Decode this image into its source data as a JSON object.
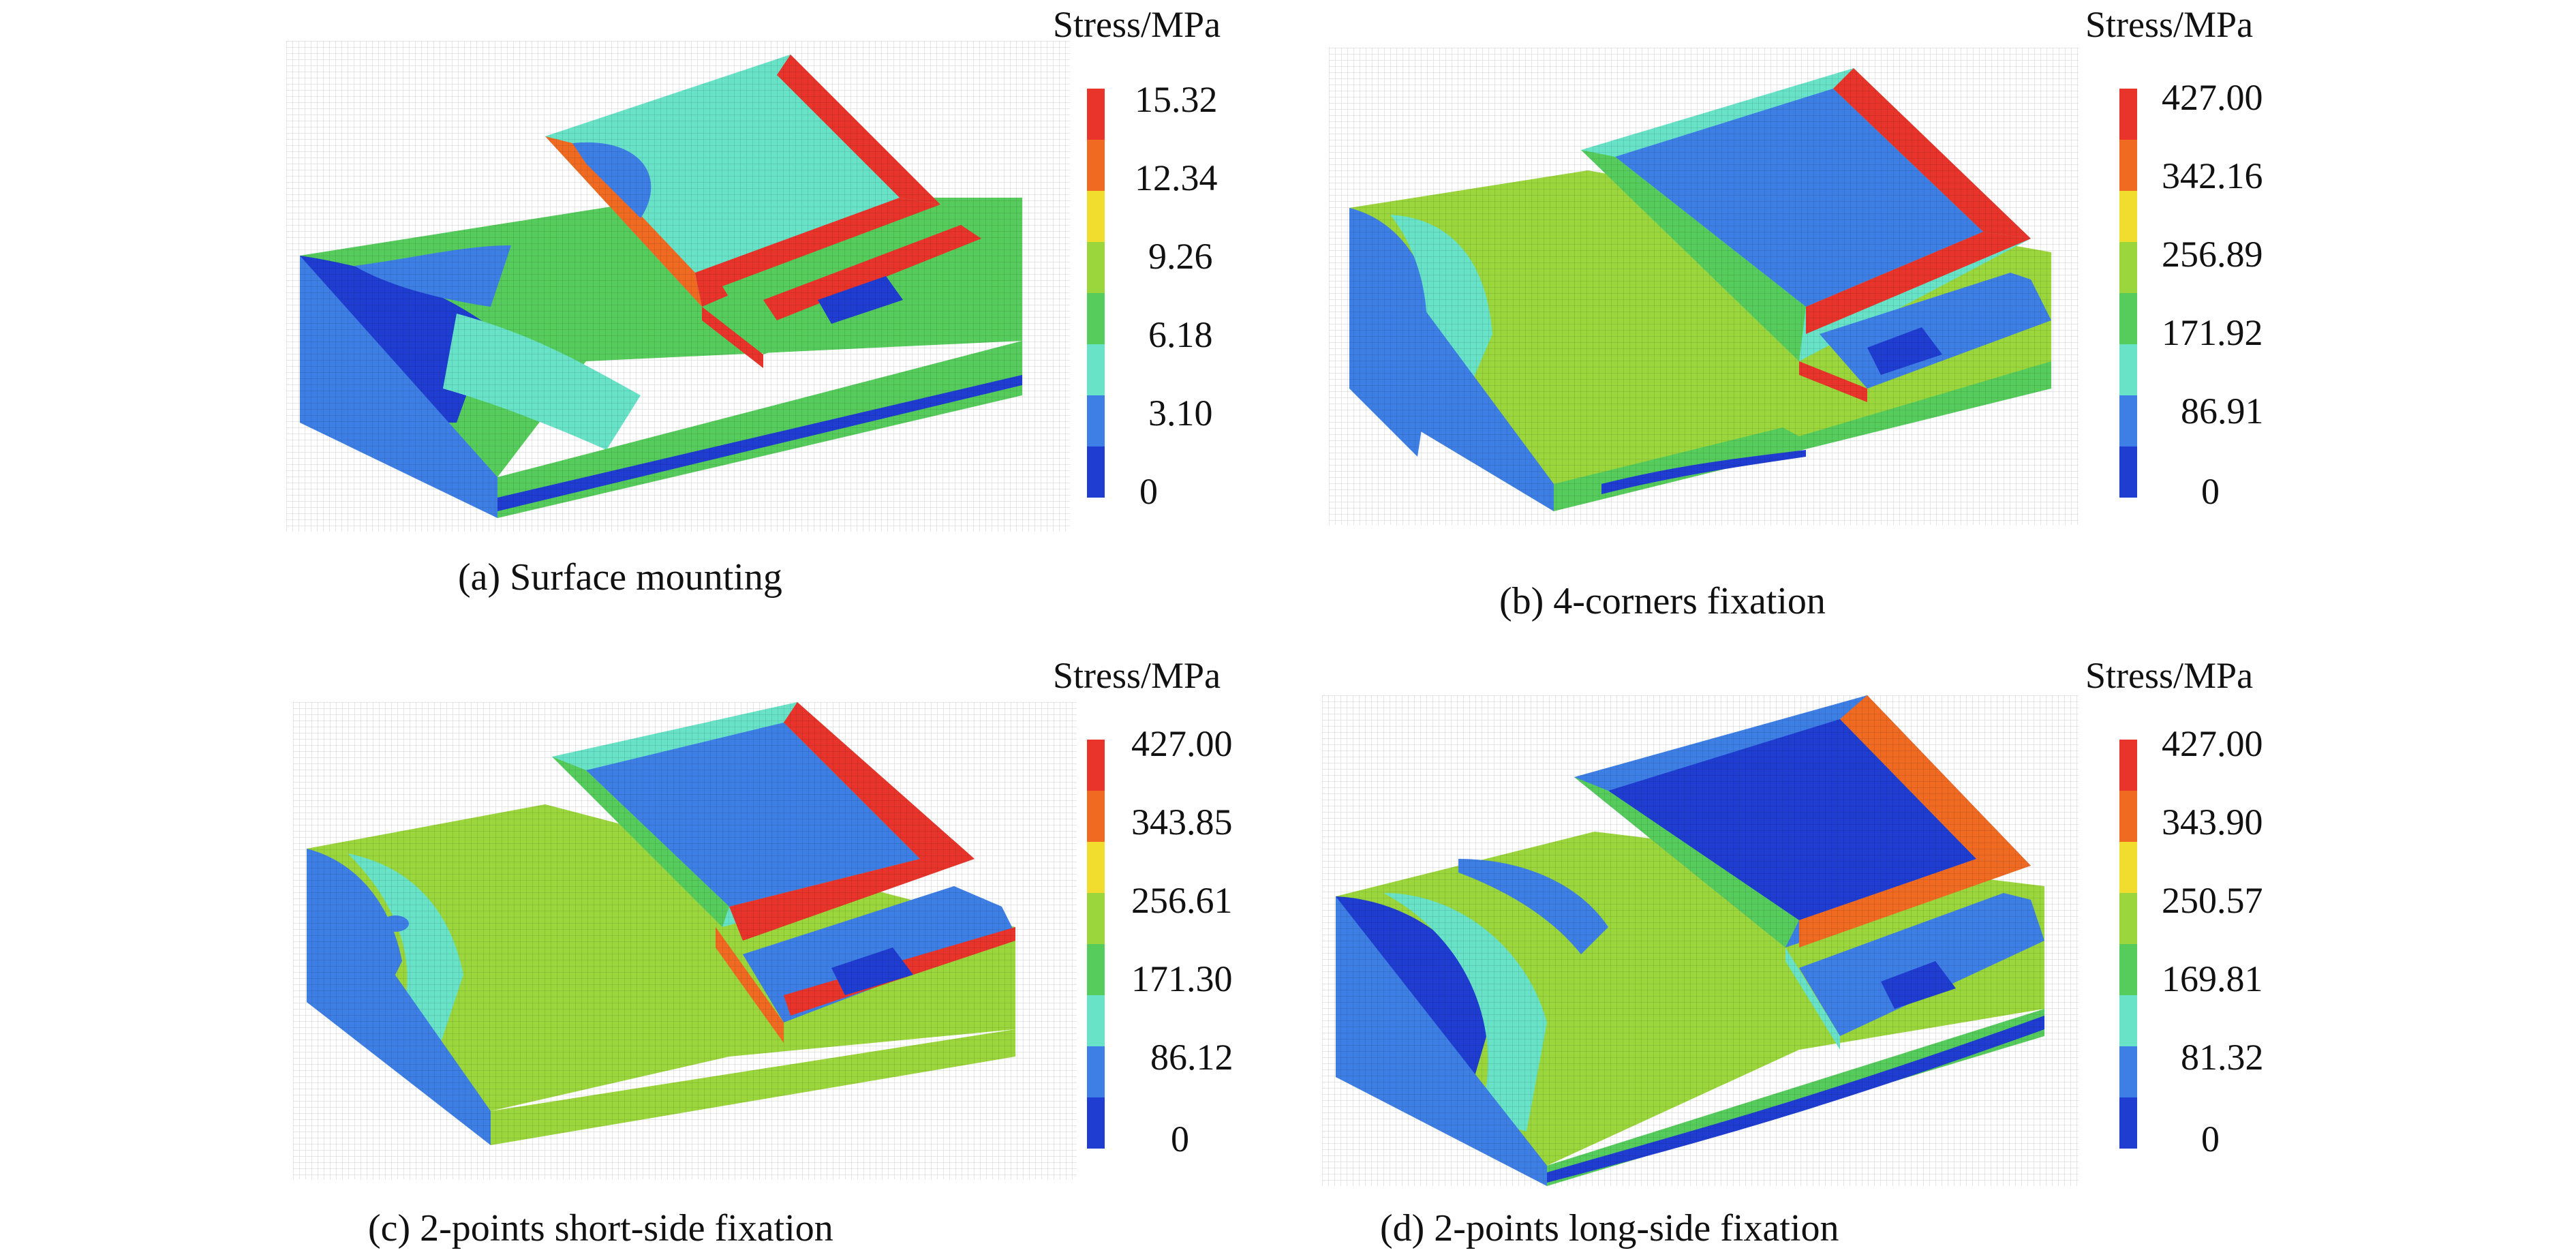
{
  "colormap": [
    "#e8342a",
    "#f06a22",
    "#f0dd2e",
    "#9ad63c",
    "#56cc5c",
    "#68e3c8",
    "#3e7fe6",
    "#1f3dd1"
  ],
  "panels": [
    {
      "id": "a",
      "caption": "(a) Surface mounting",
      "colorbar": {
        "title": "Stress/MPa",
        "ticks": [
          "15.32",
          "12.34",
          "9.26",
          "6.18",
          "3.10",
          "0"
        ]
      }
    },
    {
      "id": "b",
      "caption": "(b) 4-corners fixation",
      "colorbar": {
        "title": "Stress/MPa",
        "ticks": [
          "427.00",
          "342.16",
          "256.89",
          "171.92",
          "86.91",
          "0"
        ]
      }
    },
    {
      "id": "c",
      "caption": "(c) 2-points short-side fixation",
      "colorbar": {
        "title": "Stress/MPa",
        "ticks": [
          "427.00",
          "343.85",
          "256.61",
          "171.30",
          "86.12",
          "0"
        ]
      }
    },
    {
      "id": "d",
      "caption": "(d) 2-points long-side fixation",
      "colorbar": {
        "title": "Stress/MPa",
        "ticks": [
          "427.00",
          "343.90",
          "250.57",
          "169.81",
          "81.32",
          "0"
        ]
      }
    }
  ]
}
